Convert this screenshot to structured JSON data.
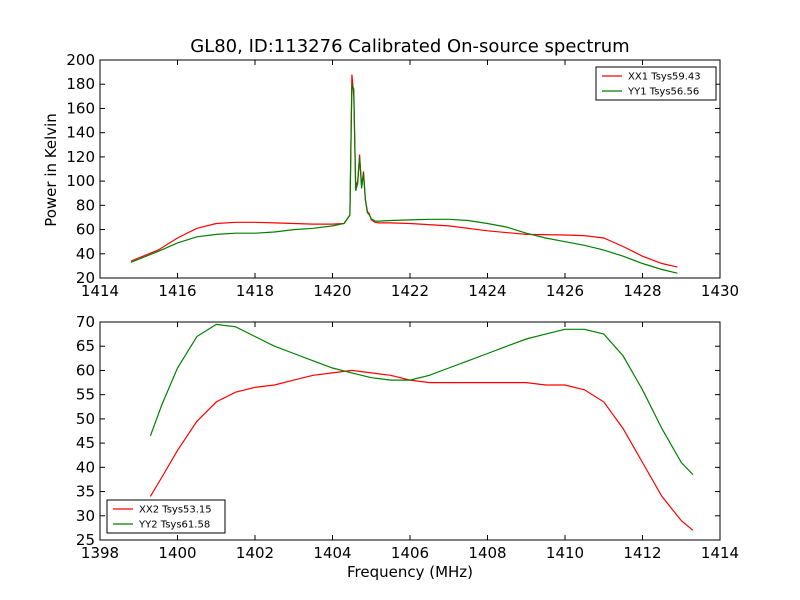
{
  "chart_data": [
    {
      "type": "line",
      "title": "GL80, ID:113276 Calibrated On-source spectrum",
      "xlabel": "",
      "ylabel": "Power in Kelvin",
      "xlim": [
        1414,
        1430
      ],
      "ylim": [
        20,
        200
      ],
      "xticks": [
        1414,
        1416,
        1418,
        1420,
        1422,
        1424,
        1426,
        1428,
        1430
      ],
      "yticks": [
        20,
        40,
        60,
        80,
        100,
        120,
        140,
        160,
        180,
        200
      ],
      "grid": false,
      "legend": "top-right",
      "series": [
        {
          "name": "XX1 Tsys59.43",
          "color": "#ff0000",
          "x": [
            1414.8,
            1415.5,
            1416.0,
            1416.5,
            1417.0,
            1417.5,
            1418.0,
            1418.5,
            1419.0,
            1419.5,
            1420.0,
            1420.3,
            1420.45,
            1420.5,
            1420.55,
            1420.6,
            1420.65,
            1420.7,
            1420.75,
            1420.8,
            1420.85,
            1420.9,
            1420.95,
            1421.0,
            1421.1,
            1421.2,
            1421.5,
            1422.0,
            1423.0,
            1424.0,
            1425.0,
            1426.0,
            1426.5,
            1427.0,
            1427.5,
            1428.0,
            1428.5,
            1428.9
          ],
          "values": [
            34,
            43,
            53,
            61,
            65,
            66,
            66,
            65.5,
            65,
            64.5,
            64.5,
            65,
            72,
            188,
            170,
            95,
            100,
            122,
            96,
            108,
            85,
            75,
            73,
            68,
            66,
            65.5,
            65.5,
            65,
            63,
            59,
            56,
            55.5,
            55,
            53,
            46,
            38,
            32,
            29
          ]
        },
        {
          "name": "YY1 Tsys56.56",
          "color": "#008000",
          "x": [
            1414.8,
            1415.5,
            1416.0,
            1416.5,
            1417.0,
            1417.5,
            1418.0,
            1418.5,
            1419.0,
            1419.5,
            1420.0,
            1420.3,
            1420.45,
            1420.5,
            1420.55,
            1420.6,
            1420.65,
            1420.7,
            1420.75,
            1420.8,
            1420.85,
            1420.9,
            1420.95,
            1421.0,
            1421.1,
            1421.2,
            1421.5,
            1422.0,
            1422.5,
            1423.0,
            1423.5,
            1424.0,
            1424.5,
            1425.0,
            1425.5,
            1426.0,
            1426.5,
            1427.0,
            1427.5,
            1428.0,
            1428.5,
            1428.9
          ],
          "values": [
            33,
            42,
            49,
            54,
            56,
            57,
            57,
            58,
            60,
            61,
            63,
            65,
            72,
            180,
            176,
            92,
            98,
            120,
            94,
            106,
            84,
            74,
            72,
            69,
            67,
            67,
            67.5,
            68,
            68.5,
            68.5,
            67.5,
            65,
            62,
            57,
            53,
            50,
            47,
            43,
            38,
            32,
            27,
            24
          ]
        }
      ]
    },
    {
      "type": "line",
      "title": "",
      "xlabel": "Frequency (MHz)",
      "ylabel": "",
      "xlim": [
        1398,
        1414
      ],
      "ylim": [
        25,
        70
      ],
      "xticks": [
        1398,
        1400,
        1402,
        1404,
        1406,
        1408,
        1410,
        1412,
        1414
      ],
      "yticks": [
        25,
        30,
        35,
        40,
        45,
        50,
        55,
        60,
        65,
        70
      ],
      "grid": false,
      "legend": "bottom-left",
      "series": [
        {
          "name": "XX2 Tsys53.15",
          "color": "#ff0000",
          "x": [
            1399.3,
            1399.6,
            1400.0,
            1400.5,
            1401.0,
            1401.5,
            1402.0,
            1402.5,
            1403.0,
            1403.5,
            1404.0,
            1404.5,
            1405.0,
            1405.5,
            1406.0,
            1406.5,
            1407.0,
            1407.5,
            1408.0,
            1408.5,
            1409.0,
            1409.5,
            1410.0,
            1410.5,
            1411.0,
            1411.5,
            1412.0,
            1412.5,
            1413.0,
            1413.3
          ],
          "values": [
            34,
            38,
            43.5,
            49.5,
            53.5,
            55.5,
            56.5,
            57,
            58,
            59,
            59.5,
            60,
            59.5,
            59,
            58,
            57.5,
            57.5,
            57.5,
            57.5,
            57.5,
            57.5,
            57,
            57,
            56,
            53.5,
            48,
            41,
            34,
            29,
            27
          ]
        },
        {
          "name": "YY2 Tsys61.58",
          "color": "#008000",
          "x": [
            1399.3,
            1399.6,
            1400.0,
            1400.5,
            1401.0,
            1401.5,
            1402.0,
            1402.5,
            1403.0,
            1403.5,
            1404.0,
            1404.5,
            1405.0,
            1405.5,
            1406.0,
            1406.5,
            1407.0,
            1407.5,
            1408.0,
            1408.5,
            1409.0,
            1409.5,
            1410.0,
            1410.5,
            1411.0,
            1411.5,
            1412.0,
            1412.5,
            1413.0,
            1413.3
          ],
          "values": [
            46.5,
            53,
            60.5,
            67,
            69.5,
            69,
            67,
            65,
            63.5,
            62,
            60.5,
            59.5,
            58.5,
            58,
            58,
            59,
            60.5,
            62,
            63.5,
            65,
            66.5,
            67.5,
            68.5,
            68.5,
            67.5,
            63,
            56,
            48,
            41,
            38.5
          ]
        }
      ]
    }
  ]
}
